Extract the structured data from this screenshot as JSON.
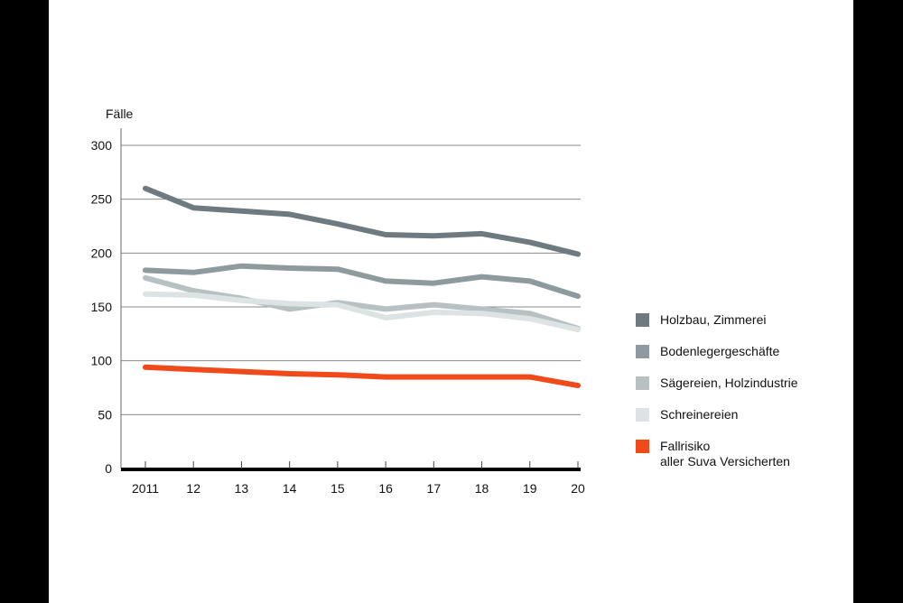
{
  "chart_data": {
    "type": "line",
    "title": "",
    "ylabel": "Fälle",
    "xlabel": "",
    "ylim": [
      0,
      300
    ],
    "yticks": [
      0,
      50,
      100,
      150,
      200,
      250,
      300
    ],
    "grid": true,
    "legend_position": "right",
    "categories": [
      "2011",
      "12",
      "13",
      "14",
      "15",
      "16",
      "17",
      "18",
      "19",
      "20"
    ],
    "series": [
      {
        "name": "Holzbau, Zimmerei",
        "color": "#6f7a80",
        "values": [
          260,
          242,
          239,
          236,
          227,
          217,
          216,
          218,
          210,
          199
        ]
      },
      {
        "name": "Bodenlegergeschäfte",
        "color": "#8e9a9e",
        "values": [
          184,
          182,
          188,
          186,
          185,
          174,
          172,
          178,
          174,
          160
        ]
      },
      {
        "name": "Sägereien, Holzindustrie",
        "color": "#b7c1c4",
        "values": [
          177,
          165,
          158,
          148,
          154,
          148,
          152,
          148,
          144,
          130
        ]
      },
      {
        "name": "Schreinereien",
        "color": "#dde2e4",
        "values": [
          162,
          161,
          156,
          153,
          152,
          140,
          145,
          144,
          139,
          129
        ]
      },
      {
        "name": "Fallrisiko\naller Suva Versicherten",
        "color": "#f04a1a",
        "values": [
          94,
          92,
          90,
          88,
          87,
          85,
          85,
          85,
          85,
          77
        ]
      }
    ]
  }
}
